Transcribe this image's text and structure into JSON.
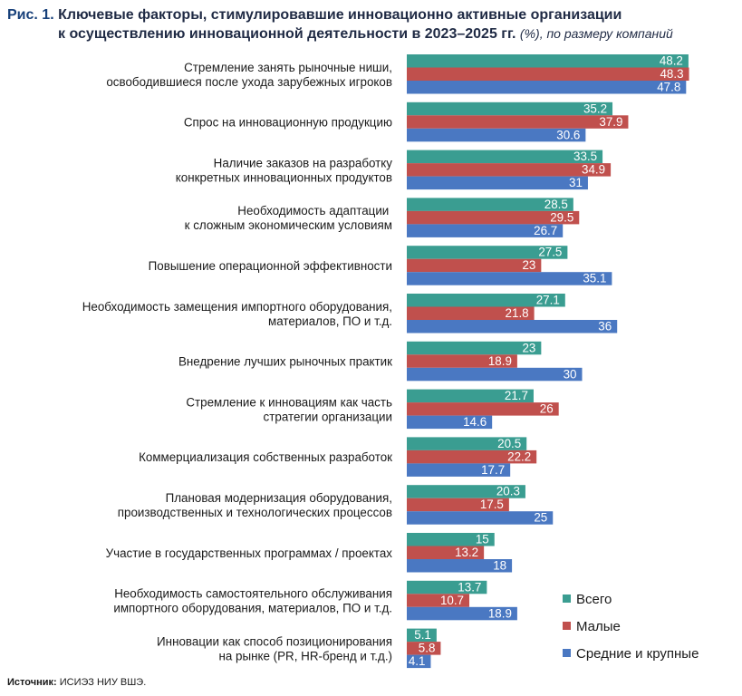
{
  "title": {
    "label": "Рис. 1.",
    "text_line1": "Ключевые факторы, стимулировавшие инновационно активные организации",
    "text_line2": "к осуществлению инновационной деятельности в 2023–2025 гг.",
    "unit": "(%), по размеру компаний"
  },
  "source": {
    "label": "Источник:",
    "text": "ИСИЭЗ НИУ ВШЭ."
  },
  "colors": {
    "total": "#3a9d91",
    "small": "#c0504d",
    "medium_large": "#4a78c2"
  },
  "chart_data": {
    "type": "bar",
    "orientation": "horizontal",
    "categories": [
      [
        "Стремление занять рыночные ниши,",
        "освободившиеся после ухода зарубежных игроков"
      ],
      [
        "Спрос на инновационную продукцию"
      ],
      [
        "Наличие заказов на разработку",
        "конкретных инновационных продуктов"
      ],
      [
        "Необходимость адаптации ",
        "к сложным экономическим условиям"
      ],
      [
        "Повышение операционной эффективности"
      ],
      [
        "Необходимость замещения импортного оборудования,",
        "материалов, ПО и т.д."
      ],
      [
        "Внедрение лучших рыночных практик"
      ],
      [
        "Стремление к инновациям как часть",
        "стратегии организации"
      ],
      [
        "Коммерциализация собственных разработок"
      ],
      [
        "Плановая модернизация оборудования,",
        "производственных и технологических процессов"
      ],
      [
        "Участие в государственных программах / проектах"
      ],
      [
        "Необходимость самостоятельного обслуживания",
        "импортного оборудования, материалов, ПО и т.д."
      ],
      [
        "Инновации как способ позиционирования",
        "на рынке (PR, HR-бренд и т.д.)"
      ]
    ],
    "series": [
      {
        "name": "Всего",
        "color_key": "total",
        "values": [
          48.2,
          35.2,
          33.5,
          28.5,
          27.5,
          27.1,
          23,
          21.7,
          20.5,
          20.3,
          15,
          13.7,
          5.1
        ]
      },
      {
        "name": "Малые",
        "color_key": "small",
        "values": [
          48.3,
          37.9,
          34.9,
          29.5,
          23,
          21.8,
          18.9,
          26,
          22.2,
          17.5,
          13.2,
          10.7,
          5.8
        ]
      },
      {
        "name": "Средние и крупные",
        "color_key": "medium_large",
        "values": [
          47.8,
          30.6,
          31,
          26.7,
          35.1,
          36,
          30,
          14.6,
          17.7,
          25,
          18,
          18.9,
          4.1
        ]
      }
    ],
    "xlim": [
      0,
      50
    ],
    "legend_position": "bottom-right"
  }
}
